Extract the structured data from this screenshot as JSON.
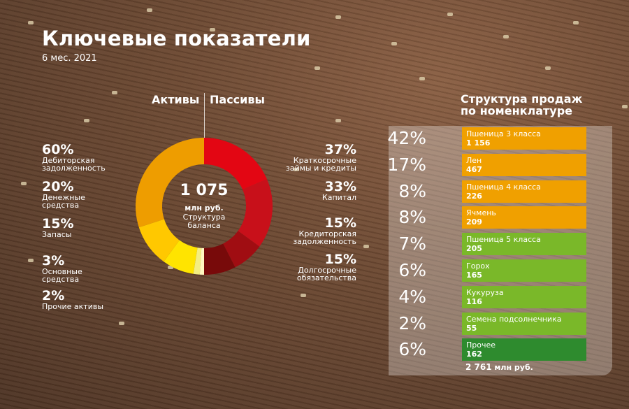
{
  "title": "Ключевые показатели",
  "subtitle": "6 мес. 2021",
  "chart_data": [
    {
      "type": "pie",
      "donut": true,
      "headers": {
        "assets": "Активы",
        "liabilities": "Пассивы"
      },
      "center": {
        "value": "1 075",
        "unit": "млн руб.",
        "label": "Структура баланса"
      },
      "assets": [
        {
          "pct": "60%",
          "label": "Дебиторская задолженность",
          "value": 60,
          "color": "#ee9d00"
        },
        {
          "pct": "20%",
          "label": "Денежные средства",
          "value": 20,
          "color": "#ffc800"
        },
        {
          "pct": "15%",
          "label": "Запасы",
          "value": 15,
          "color": "#ffe400"
        },
        {
          "pct": "3%",
          "label": "Основные средства",
          "value": 3,
          "color": "#f4ee80"
        },
        {
          "pct": "2%",
          "label": "Прочие активы",
          "value": 2,
          "color": "#fff7c0"
        }
      ],
      "liabilities": [
        {
          "pct": "37%",
          "label": "Краткосрочные займы и кредиты",
          "value": 37,
          "color": "#e30613"
        },
        {
          "pct": "33%",
          "label": "Капитал",
          "value": 33,
          "color": "#c8101a"
        },
        {
          "pct": "15%",
          "label": "Кредиторская задолженность",
          "value": 15,
          "color": "#a00d12"
        },
        {
          "pct": "15%",
          "label": "Долгосрочные обязательства",
          "value": 15,
          "color": "#780a0a"
        }
      ]
    },
    {
      "type": "table",
      "title": "Структура продаж по номенклатуре",
      "rows": [
        {
          "pct": "42%",
          "name": "Пшеница 3 класса",
          "value": "1 156",
          "color": "#f0a000"
        },
        {
          "pct": "17%",
          "name": "Лен",
          "value": "467",
          "color": "#f0a000"
        },
        {
          "pct": "8%",
          "name": "Пшеница 4 класса",
          "value": "226",
          "color": "#f0a000"
        },
        {
          "pct": "8%",
          "name": "Ячмень",
          "value": "209",
          "color": "#f0a000"
        },
        {
          "pct": "7%",
          "name": "Пшеница 5 класса",
          "value": "205",
          "color": "#7ab829"
        },
        {
          "pct": "6%",
          "name": "Горох",
          "value": "165",
          "color": "#7ab829"
        },
        {
          "pct": "4%",
          "name": "Кукуруза",
          "value": "116",
          "color": "#7ab829"
        },
        {
          "pct": "2%",
          "name": "Семена подсолнечника",
          "value": "55",
          "color": "#7ab829"
        },
        {
          "pct": "6%",
          "name": "Прочее",
          "value": "162",
          "color": "#2e8b2e"
        }
      ],
      "total": {
        "value": "2 761",
        "unit": "млн руб."
      }
    }
  ]
}
